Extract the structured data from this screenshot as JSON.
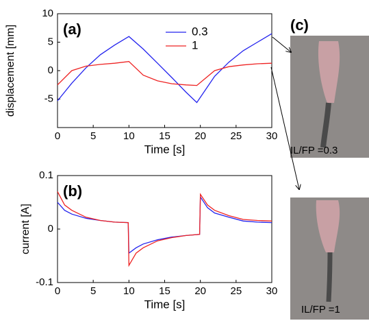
{
  "chart_data": [
    {
      "type": "line",
      "annotation": "(a)",
      "xlabel": "Time [s]",
      "ylabel": "displacement [mm]",
      "x": [
        0,
        2,
        4,
        6,
        8,
        10,
        12,
        14,
        16,
        18,
        19.5,
        22,
        24,
        26,
        28,
        30
      ],
      "series": [
        {
          "name": "0.3",
          "color": "#2222ee",
          "values": [
            -5.3,
            -2.2,
            0.5,
            2.8,
            4.5,
            6,
            3.8,
            1.3,
            -1.2,
            -3.8,
            -5.6,
            -1,
            1.5,
            3.5,
            5,
            6.5
          ]
        },
        {
          "name": "1",
          "color": "#ee2222",
          "values": [
            -2.5,
            0,
            0.8,
            1.1,
            1.3,
            1.6,
            -0.8,
            -1.8,
            -2.3,
            -2.5,
            -2.6,
            0,
            0.7,
            1,
            1.2,
            1.3
          ]
        }
      ],
      "xlim": [
        0,
        30
      ],
      "xticks": [
        0,
        5,
        10,
        15,
        20,
        25,
        30
      ],
      "ylim": [
        -10,
        10
      ],
      "yticks": [
        -5,
        0,
        5,
        10
      ],
      "legend": "upper right"
    },
    {
      "type": "line",
      "annotation": "(b)",
      "xlabel": "Time [s]",
      "ylabel": "current [A]",
      "x": [
        0,
        1,
        2,
        4,
        6,
        8,
        9.9,
        10,
        11,
        12,
        14,
        16,
        18,
        19.9,
        20,
        21,
        22,
        24,
        26,
        28,
        30
      ],
      "series": [
        {
          "name": "0.3",
          "color": "#2222ee",
          "values": [
            0.05,
            0.035,
            0.028,
            0.02,
            0.016,
            0.013,
            0.012,
            -0.045,
            -0.035,
            -0.028,
            -0.02,
            -0.015,
            -0.012,
            -0.01,
            0.06,
            0.04,
            0.03,
            0.022,
            0.015,
            0.013,
            0.012
          ]
        },
        {
          "name": "1",
          "color": "#ee2222",
          "values": [
            0.07,
            0.045,
            0.035,
            0.022,
            0.016,
            0.013,
            0.012,
            -0.068,
            -0.045,
            -0.035,
            -0.022,
            -0.016,
            -0.012,
            -0.01,
            0.065,
            0.045,
            0.035,
            0.025,
            0.018,
            0.016,
            0.015
          ]
        }
      ],
      "xlim": [
        0,
        30
      ],
      "xticks": [
        0,
        5,
        10,
        15,
        20,
        25,
        30
      ],
      "ylim": [
        -0.1,
        0.1
      ],
      "yticks": [
        -0.1,
        0,
        0.1
      ],
      "legend": "none"
    }
  ],
  "panel_c": {
    "label": "(c)",
    "photos": [
      {
        "caption": "IL/FP =0.3"
      },
      {
        "caption": "IL/FP =1"
      }
    ]
  }
}
